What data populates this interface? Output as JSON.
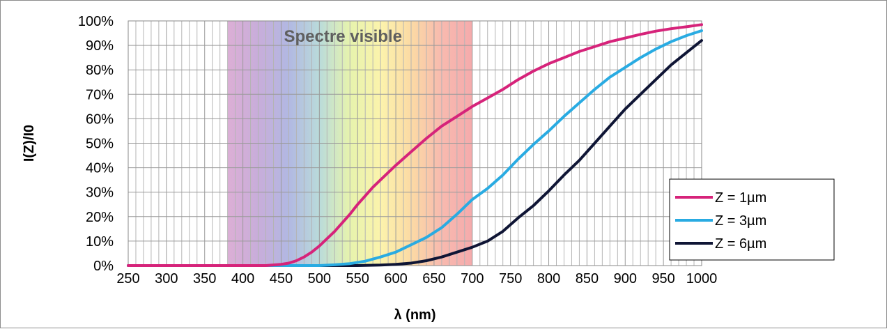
{
  "chart_data": {
    "type": "line",
    "xlabel": "λ (nm)",
    "ylabel": "I(Z)/I0",
    "xlim": [
      250,
      1000
    ],
    "ylim": [
      0,
      100
    ],
    "x_ticks": [
      250,
      300,
      350,
      400,
      450,
      500,
      550,
      600,
      650,
      700,
      750,
      800,
      850,
      900,
      950,
      1000
    ],
    "y_ticks": [
      0,
      10,
      20,
      30,
      40,
      50,
      60,
      70,
      80,
      90,
      100
    ],
    "x_tick_labels": [
      "250",
      "300",
      "350",
      "400",
      "450",
      "500",
      "550",
      "600",
      "650",
      "700",
      "750",
      "800",
      "850",
      "900",
      "950",
      "1000"
    ],
    "y_tick_labels": [
      "0%",
      "10%",
      "20%",
      "30%",
      "40%",
      "50%",
      "60%",
      "70%",
      "80%",
      "90%",
      "100%"
    ],
    "grid": true,
    "minor_x_step": 10,
    "legend_position": "bottom-right",
    "band": {
      "label": "Spectre visible",
      "x_start": 380,
      "x_end": 700,
      "colors": [
        "#d8a6d1",
        "#c2a4d6",
        "#a9b0df",
        "#b2d7d6",
        "#e4f2a4",
        "#fbf2a3",
        "#fbd69a",
        "#f7b2a6",
        "#f4a1a3"
      ]
    },
    "series": [
      {
        "name": "Z = 1µm",
        "color": "#d6237a",
        "x": [
          250,
          300,
          350,
          400,
          430,
          450,
          460,
          470,
          480,
          490,
          500,
          510,
          520,
          530,
          540,
          550,
          560,
          570,
          580,
          590,
          600,
          620,
          640,
          660,
          680,
          700,
          720,
          740,
          760,
          780,
          800,
          820,
          840,
          860,
          880,
          900,
          920,
          940,
          960,
          980,
          1000
        ],
        "y": [
          0,
          0,
          0,
          0,
          0,
          0.5,
          1,
          2,
          3.5,
          5.5,
          8,
          11,
          14,
          17.5,
          21,
          25,
          28.5,
          32,
          35,
          38,
          41,
          46.5,
          52,
          57,
          61,
          65,
          68.5,
          72,
          76,
          79.5,
          82.5,
          85,
          87.5,
          89.5,
          91.5,
          93,
          94.5,
          95.8,
          96.8,
          97.6,
          98.5
        ]
      },
      {
        "name": "Z = 3µm",
        "color": "#29abe2",
        "x": [
          250,
          300,
          350,
          400,
          450,
          500,
          520,
          540,
          560,
          580,
          600,
          620,
          640,
          660,
          680,
          700,
          720,
          740,
          760,
          780,
          800,
          820,
          840,
          860,
          880,
          900,
          920,
          940,
          960,
          980,
          1000
        ],
        "y": [
          0,
          0,
          0,
          0,
          0,
          0,
          0.3,
          0.8,
          1.8,
          3.5,
          5.5,
          8.5,
          11.5,
          15.5,
          21,
          27,
          31.5,
          37,
          43.5,
          49.5,
          55,
          61,
          66.5,
          72,
          77,
          81,
          85,
          88.5,
          91.5,
          94,
          96
        ]
      },
      {
        "name": "Z = 6µm",
        "color": "#0f1535",
        "x": [
          250,
          300,
          350,
          400,
          450,
          500,
          550,
          580,
          600,
          620,
          640,
          660,
          680,
          700,
          720,
          740,
          760,
          780,
          800,
          820,
          840,
          860,
          880,
          900,
          920,
          940,
          960,
          980,
          1000
        ],
        "y": [
          0,
          0,
          0,
          0,
          0,
          0,
          0,
          0.2,
          0.5,
          1,
          2,
          3.5,
          5.5,
          7.5,
          10,
          14,
          19.5,
          24.5,
          30.5,
          37,
          43,
          50,
          57,
          64,
          70,
          76,
          82,
          87,
          92
        ]
      }
    ]
  }
}
